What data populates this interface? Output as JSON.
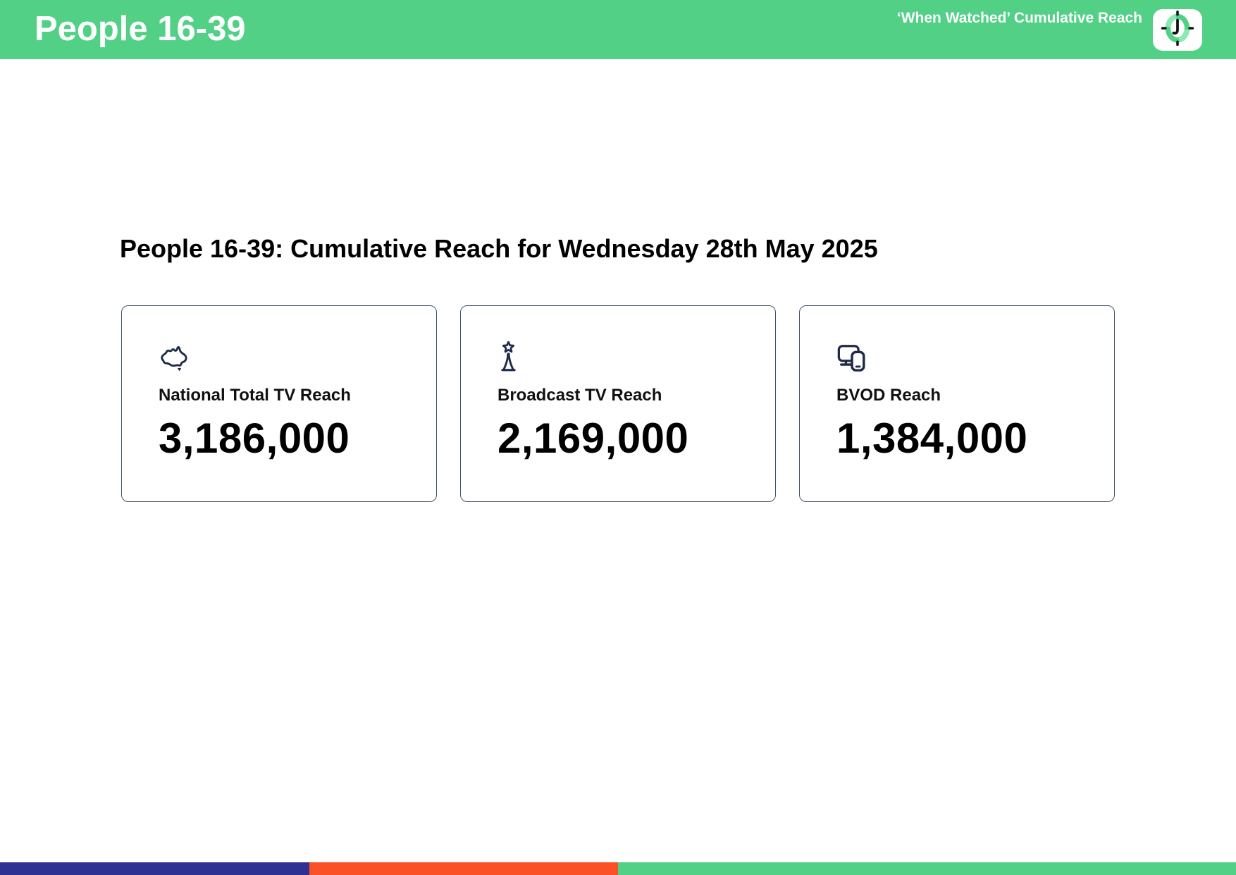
{
  "header": {
    "title": "People 16-39",
    "right_label": "‘When Watched’ Cumulative Reach",
    "logo_icon": "clock-icon"
  },
  "main": {
    "heading": "People 16-39: Cumulative Reach for Wednesday 28th May 2025",
    "cards": [
      {
        "icon": "australia-map-icon",
        "label": "National Total TV Reach",
        "value": "3,186,000"
      },
      {
        "icon": "broadcast-tower-icon",
        "label": "Broadcast TV Reach",
        "value": "2,169,000"
      },
      {
        "icon": "devices-icon",
        "label": "BVOD Reach",
        "value": "1,384,000"
      }
    ]
  },
  "footer": {
    "segments": [
      {
        "name": "blue",
        "color": "#2e3192",
        "width_pct": 25
      },
      {
        "name": "orange",
        "color": "#fb5126",
        "width_pct": 25
      },
      {
        "name": "green",
        "color": "#52d186",
        "width_pct": 50
      }
    ]
  },
  "colors": {
    "brand_green": "#52d186",
    "icon_navy": "#1e2a47",
    "card_border": "#44546a",
    "heading_text": "#000000",
    "value_text": "#000000"
  }
}
